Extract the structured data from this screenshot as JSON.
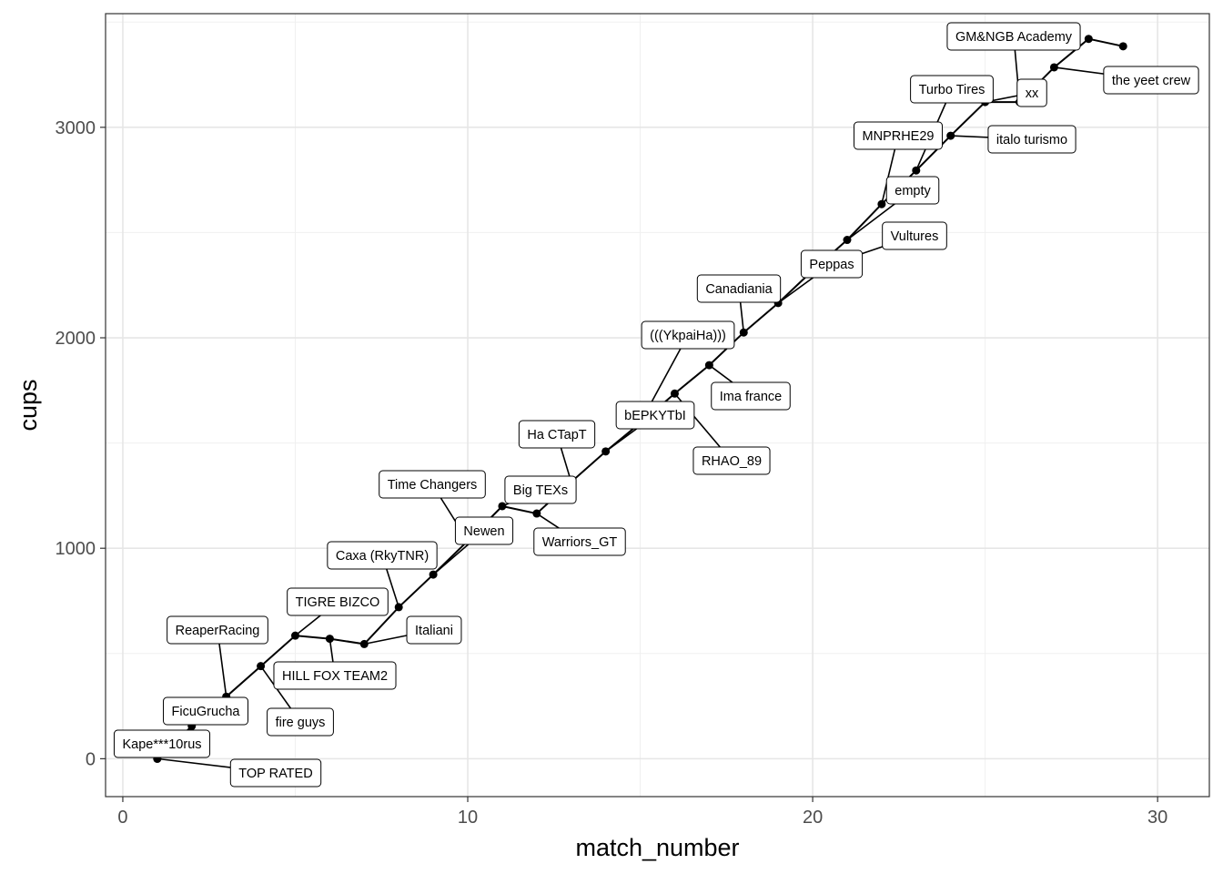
{
  "chart_data": {
    "type": "line",
    "xlabel": "match_number",
    "ylabel": "cups",
    "xlim": [
      -0.5,
      31.5
    ],
    "ylim": [
      -180,
      3540
    ],
    "x_ticks": [
      0,
      10,
      20,
      30
    ],
    "y_ticks": [
      0,
      1000,
      2000,
      3000
    ],
    "grid": true,
    "theme": "bw",
    "line_color": "#000000",
    "point_color": "#000000",
    "points": [
      {
        "x": 1,
        "y": 0,
        "label": "Kape***10rus"
      },
      {
        "x": 1,
        "y": 0,
        "label": "TOP RATED"
      },
      {
        "x": 2,
        "y": 155,
        "label": "FicuGrucha"
      },
      {
        "x": 3,
        "y": 295,
        "label": "ReaperRacing"
      },
      {
        "x": 4,
        "y": 440,
        "label": "fire guys"
      },
      {
        "x": 5,
        "y": 585,
        "label": "TIGRE BIZCO"
      },
      {
        "x": 6,
        "y": 570,
        "label": "HILL FOX TEAM2"
      },
      {
        "x": 7,
        "y": 545,
        "label": "Italiani"
      },
      {
        "x": 8,
        "y": 720,
        "label": "Caxa (RkyTNR)"
      },
      {
        "x": 9,
        "y": 875,
        "label": "Newen"
      },
      {
        "x": 10,
        "y": 1035,
        "label": "Time Changers"
      },
      {
        "x": 11,
        "y": 1200,
        "label": "Big TEXs"
      },
      {
        "x": 12,
        "y": 1165,
        "label": "Warriors_GT"
      },
      {
        "x": 13,
        "y": 1315,
        "label": "Ha CTapT"
      },
      {
        "x": 14,
        "y": 1460,
        "label": "bEPKYTbI"
      },
      {
        "x": 15,
        "y": 1595,
        "label": "(((YkpaiHa)))"
      },
      {
        "x": 16,
        "y": 1735,
        "label": "RHAO_89"
      },
      {
        "x": 17,
        "y": 1870,
        "label": "Ima france"
      },
      {
        "x": 18,
        "y": 2025,
        "label": "Canadiania"
      },
      {
        "x": 19,
        "y": 2165,
        "label": "Peppas"
      },
      {
        "x": 20,
        "y": 2320,
        "label": "Vultures"
      },
      {
        "x": 21,
        "y": 2465,
        "label": "empty"
      },
      {
        "x": 22,
        "y": 2635,
        "label": "MNPRHE29"
      },
      {
        "x": 23,
        "y": 2795,
        "label": "Turbo Tires"
      },
      {
        "x": 24,
        "y": 2960,
        "label": "italo turismo"
      },
      {
        "x": 25,
        "y": 3120,
        "label": "xx"
      },
      {
        "x": 26,
        "y": 3120,
        "label": "GM&NGB Academy"
      },
      {
        "x": 27,
        "y": 3285,
        "label": "the yeet crew"
      },
      {
        "x": 28,
        "y": 3420,
        "label": ""
      },
      {
        "x": 29,
        "y": 3385,
        "label": ""
      }
    ]
  }
}
